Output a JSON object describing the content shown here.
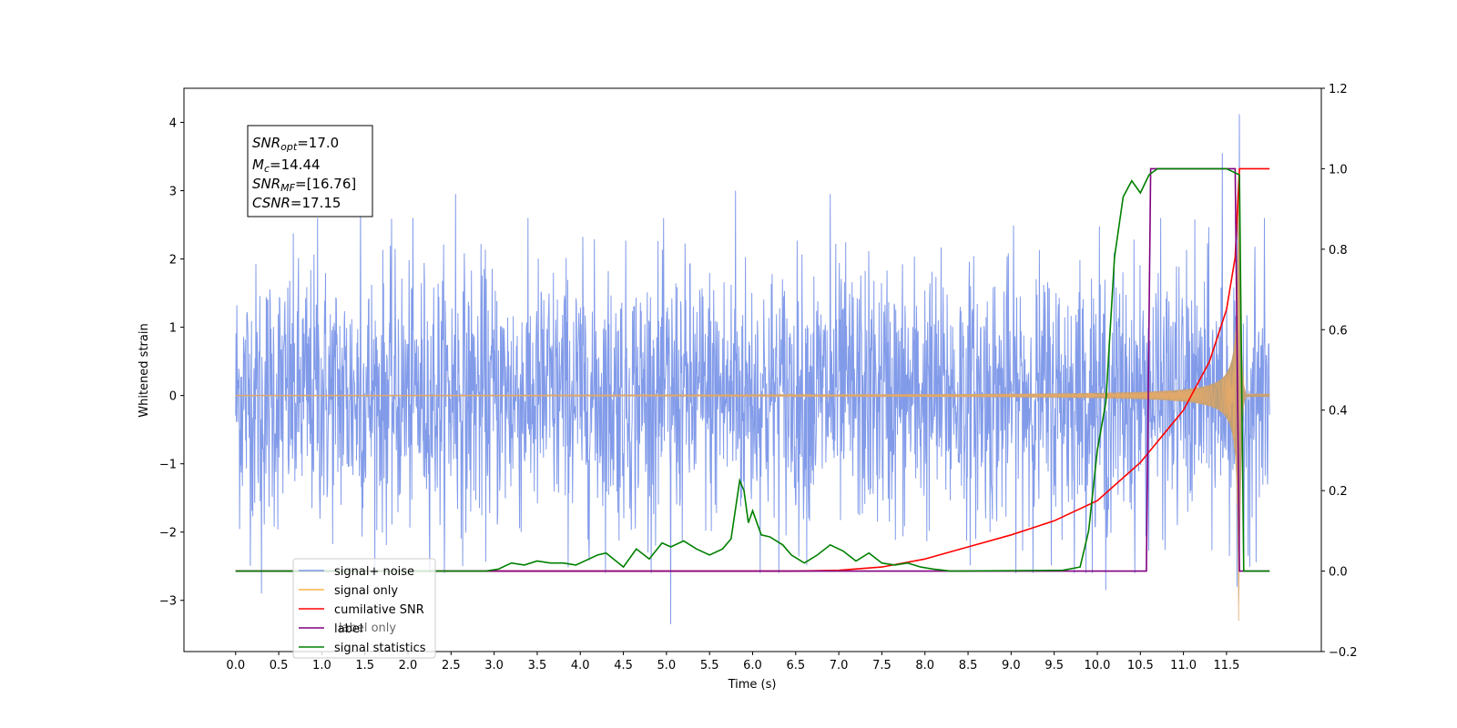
{
  "chart_data": {
    "type": "line",
    "xlabel": "Time (s)",
    "ylabel_left": "Whitened strain",
    "ylabel_right": "",
    "xlim": [
      -0.6,
      12.6
    ],
    "ylim_left": [
      -3.75,
      4.5
    ],
    "ylim_right": [
      -0.2,
      1.2
    ],
    "x_ticks": [
      "0.0",
      "0.5",
      "1.0",
      "1.5",
      "2.0",
      "2.5",
      "3.0",
      "3.5",
      "4.0",
      "4.5",
      "5.0",
      "5.5",
      "6.0",
      "6.5",
      "7.0",
      "7.5",
      "8.0",
      "8.5",
      "9.0",
      "9.5",
      "10.0",
      "10.5",
      "11.0",
      "11.5"
    ],
    "y_ticks_left": [
      "−3",
      "−2",
      "−1",
      "0",
      "1",
      "2",
      "3",
      "4"
    ],
    "y_ticks_right": [
      "−0.2",
      "0.0",
      "0.2",
      "0.4",
      "0.6",
      "0.8",
      "1.0",
      "1.2"
    ],
    "grid": false,
    "legend_position": "lower-left",
    "annotation": {
      "snr_opt": {
        "main": "SNR",
        "sub": "opt",
        "value": "=17.0"
      },
      "mc": {
        "main": "M",
        "sub": "c",
        "value": "=14.44"
      },
      "snr_mf": {
        "main": "SNR",
        "sub": "MF",
        "value": "=[16.76]"
      },
      "csnr": {
        "main": "CSNR",
        "value": "=17.15"
      }
    },
    "series": [
      {
        "name": "signal+ noise",
        "axis": "left",
        "color": "#7b96e8",
        "description_stats": {
          "x_start": 0.0,
          "x_end": 12.0,
          "typical_amplitude": 1.0,
          "min": -3.35,
          "max": 4.12
        },
        "spikes": [
          {
            "x": 0.3,
            "y": -2.9
          },
          {
            "x": 0.95,
            "y": 2.6
          },
          {
            "x": 1.45,
            "y": 2.9
          },
          {
            "x": 2.55,
            "y": 2.95
          },
          {
            "x": 5.05,
            "y": -3.35
          },
          {
            "x": 5.8,
            "y": 3.0
          },
          {
            "x": 6.9,
            "y": 2.95
          },
          {
            "x": 10.1,
            "y": -2.85
          },
          {
            "x": 11.45,
            "y": 3.55
          },
          {
            "x": 11.65,
            "y": 4.12
          },
          {
            "x": 11.62,
            "y": -2.8
          }
        ]
      },
      {
        "name": "signal only",
        "axis": "left",
        "color": "#ffb347",
        "chirp": {
          "merger_x": 11.65,
          "peak_amplitude": 3.3,
          "ringdown_end": 11.72,
          "post_merger_amplitude": 0.02
        }
      },
      {
        "name": "cumilative SNR",
        "axis": "right",
        "color": "#ff0000",
        "x": [
          0.0,
          6.5,
          7.0,
          7.5,
          8.0,
          8.5,
          9.0,
          9.5,
          10.0,
          10.5,
          11.0,
          11.3,
          11.5,
          11.6,
          11.65,
          12.0
        ],
        "y": [
          0.0,
          0.0,
          0.002,
          0.01,
          0.03,
          0.06,
          0.09,
          0.125,
          0.175,
          0.27,
          0.4,
          0.52,
          0.65,
          0.78,
          1.0,
          1.0
        ]
      },
      {
        "name": "label",
        "axis": "right",
        "color": "#800080",
        "x": [
          0.0,
          10.57,
          10.62,
          11.6,
          11.65,
          12.0
        ],
        "y": [
          0.0,
          0.0,
          1.0,
          1.0,
          0.0,
          0.0
        ]
      },
      {
        "name": "signal statistics",
        "axis": "right",
        "color": "#008000",
        "x": [
          0.0,
          2.9,
          3.05,
          3.2,
          3.35,
          3.5,
          3.65,
          3.8,
          3.95,
          4.1,
          4.2,
          4.3,
          4.5,
          4.65,
          4.8,
          4.95,
          5.05,
          5.2,
          5.35,
          5.5,
          5.65,
          5.75,
          5.85,
          5.9,
          5.95,
          6.0,
          6.1,
          6.2,
          6.35,
          6.45,
          6.6,
          6.75,
          6.9,
          7.05,
          7.2,
          7.35,
          7.5,
          7.65,
          7.8,
          7.95,
          8.1,
          8.3,
          9.6,
          9.8,
          9.9,
          10.0,
          10.1,
          10.2,
          10.3,
          10.4,
          10.5,
          10.6,
          10.7,
          10.8,
          11.0,
          11.5,
          11.65,
          11.7,
          12.0
        ],
        "y": [
          0.0,
          0.0,
          0.005,
          0.02,
          0.015,
          0.025,
          0.02,
          0.02,
          0.015,
          0.03,
          0.04,
          0.045,
          0.01,
          0.055,
          0.03,
          0.07,
          0.06,
          0.075,
          0.055,
          0.04,
          0.055,
          0.08,
          0.225,
          0.2,
          0.12,
          0.15,
          0.09,
          0.085,
          0.065,
          0.04,
          0.02,
          0.04,
          0.065,
          0.05,
          0.025,
          0.045,
          0.02,
          0.015,
          0.02,
          0.01,
          0.005,
          0.0,
          0.002,
          0.01,
          0.1,
          0.3,
          0.42,
          0.78,
          0.93,
          0.97,
          0.94,
          0.985,
          1.0,
          1.0,
          1.0,
          1.0,
          0.985,
          0.0,
          0.0
        ]
      }
    ],
    "legend_overlap_artifact": "label only"
  }
}
